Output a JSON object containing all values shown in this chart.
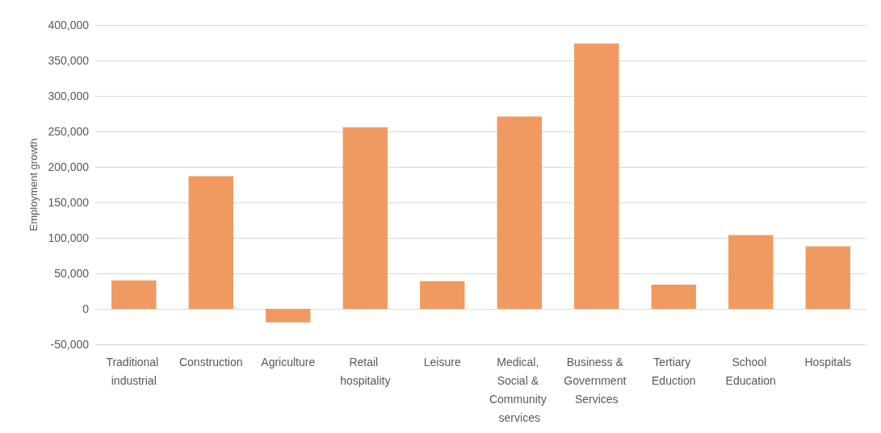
{
  "chart_data": {
    "type": "bar",
    "ylabel": "Employment growth",
    "categories": [
      "Traditional industrial",
      "Construction",
      "Agriculture",
      "Retail hospitality",
      "Leisure",
      "Medical, Social & Community services",
      "Business & Government Services",
      "Tertiary Eduction",
      "School Education",
      "Hospitals"
    ],
    "values": [
      40000,
      187000,
      -19000,
      256000,
      39000,
      271000,
      374000,
      34000,
      104000,
      88000
    ],
    "color": "#f09a62",
    "ylim": [
      -50000,
      400000
    ],
    "yticks": [
      {
        "value": -50000,
        "label": "-50,000"
      },
      0,
      {
        "value": 50000,
        "label": "50,000"
      },
      {
        "value": 100000,
        "label": "100,000"
      },
      {
        "value": 150000,
        "label": "150,000"
      },
      {
        "value": 200000,
        "label": "200,000"
      },
      {
        "value": 250000,
        "label": "250,000"
      },
      {
        "value": 300000,
        "label": "300,000"
      },
      {
        "value": 350000,
        "label": "350,000"
      },
      {
        "value": 400000,
        "label": "400,000"
      }
    ],
    "grid": "y"
  }
}
